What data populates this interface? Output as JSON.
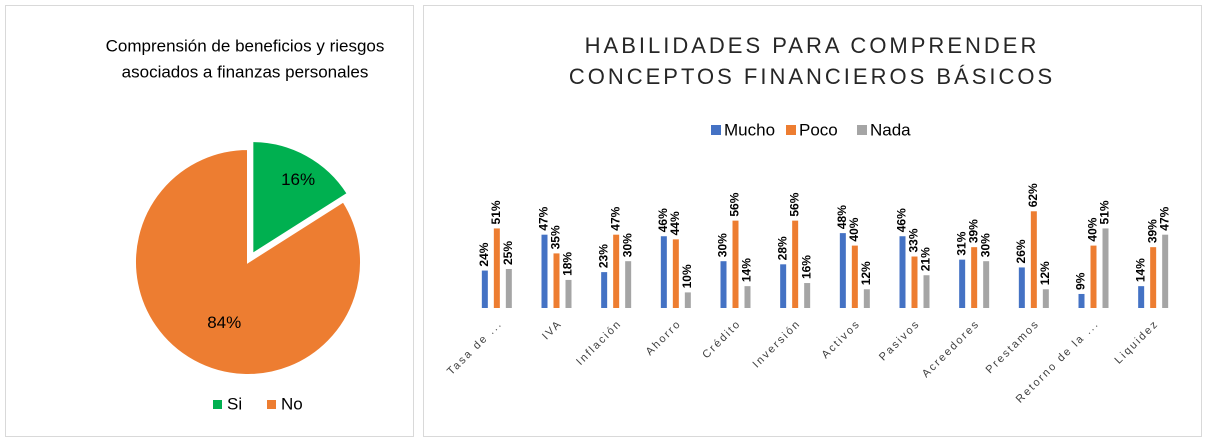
{
  "chart_data": [
    {
      "type": "pie",
      "title": [
        "Comprensión de beneficios y riesgos",
        "asociados a finanzas personales"
      ],
      "categories": [
        "Si",
        "No"
      ],
      "values": [
        16,
        84
      ],
      "value_labels": [
        "16%",
        "84%"
      ],
      "colors": [
        "#00b050",
        "#ed7d31"
      ],
      "legend": "bottom"
    },
    {
      "type": "bar",
      "title": [
        "HABILIDADES PARA COMPRENDER",
        "CONCEPTOS FINANCIEROS BÁSICOS"
      ],
      "categories": [
        "Tasa de ...",
        "IVA",
        "Inflación",
        "Ahorro",
        "Crédito",
        "Inversión",
        "Activos",
        "Pasivos",
        "Acreedores",
        "Prestamos",
        "Retorno de la ...",
        "Liquidez"
      ],
      "legend": "top",
      "series": [
        {
          "name": "Mucho",
          "color": "#4472c4",
          "values": [
            24,
            47,
            23,
            46,
            30,
            28,
            48,
            46,
            31,
            26,
            9,
            14
          ],
          "value_labels": [
            "24%",
            "47%",
            "23%",
            "46%",
            "30%",
            "28%",
            "48%",
            "46%",
            "31%",
            "26%",
            "9%",
            "14%"
          ]
        },
        {
          "name": "Poco",
          "color": "#ed7d31",
          "values": [
            51,
            35,
            47,
            44,
            56,
            56,
            40,
            33,
            39,
            62,
            40,
            39
          ],
          "value_labels": [
            "51%",
            "35%",
            "47%",
            "44%",
            "56%",
            "56%",
            "40%",
            "33%",
            "39%",
            "62%",
            "40%",
            "39%"
          ]
        },
        {
          "name": "Nada",
          "color": "#a5a5a5",
          "values": [
            25,
            18,
            30,
            10,
            14,
            16,
            12,
            21,
            30,
            12,
            51,
            47
          ],
          "value_labels": [
            "25%",
            "18%",
            "30%",
            "10%",
            "14%",
            "16%",
            "12%",
            "21%",
            "30%",
            "12%",
            "51%",
            "47%"
          ]
        }
      ]
    }
  ]
}
